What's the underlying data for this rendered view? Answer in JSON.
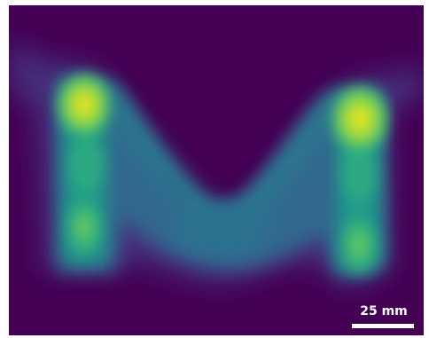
{
  "image": {
    "description_colormap": "viridis",
    "colors": {
      "background": "#440154",
      "low": "#3b528b",
      "mid": "#21918c",
      "high": "#5ec962",
      "peak": "#fde725"
    }
  },
  "scale_bar": {
    "label": "25 mm"
  }
}
